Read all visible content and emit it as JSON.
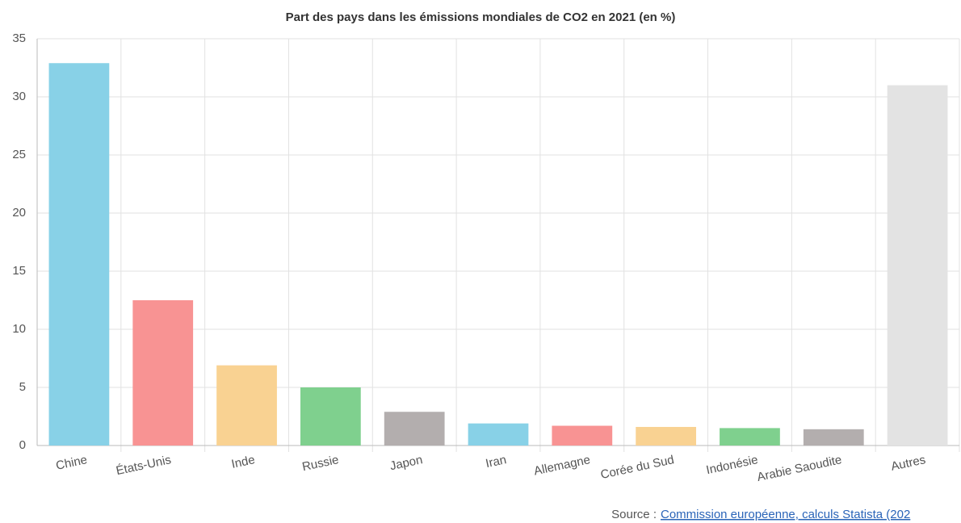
{
  "chart_data": {
    "type": "bar",
    "title": "Part des pays dans les émissions mondiales de CO2 en 2021 (en %)",
    "categories": [
      "Chine",
      "États-Unis",
      "Inde",
      "Russie",
      "Japon",
      "Iran",
      "Allemagne",
      "Corée du Sud",
      "Indonésie",
      "Arabie Saoudite",
      "Autres"
    ],
    "values": [
      32.9,
      12.5,
      6.9,
      5.0,
      2.9,
      1.9,
      1.7,
      1.6,
      1.5,
      1.4,
      31.0
    ],
    "colors": [
      "#88d1e7",
      "#f89393",
      "#f9d292",
      "#7fd08e",
      "#b3aeae",
      "#88d1e7",
      "#f89393",
      "#f9d292",
      "#7fd08e",
      "#b3aeae",
      "#e3e3e3"
    ],
    "ylim": [
      0,
      35
    ],
    "yticks": [
      0,
      5,
      10,
      15,
      20,
      25,
      30,
      35
    ],
    "grid": true,
    "source_label": "Source :",
    "source_link": "Commission européenne, calculs Statista (202"
  }
}
